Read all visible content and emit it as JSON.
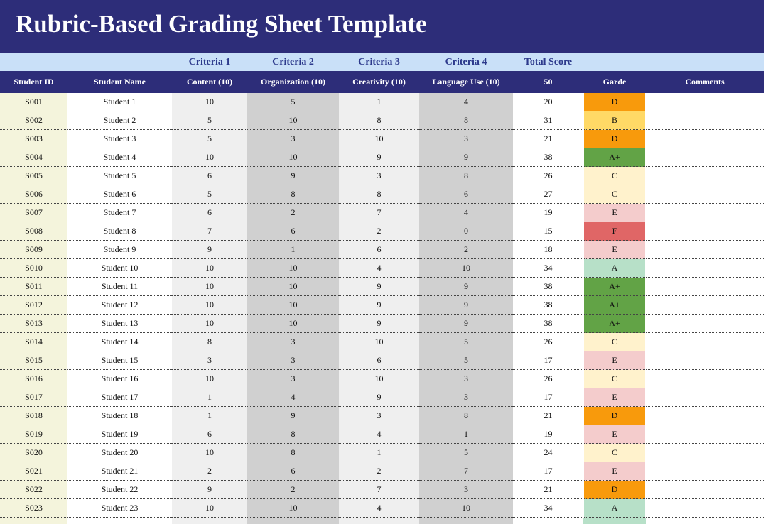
{
  "title": "Rubric-Based Grading Sheet Template",
  "criteria_row": [
    "Criteria 1",
    "Criteria 2",
    "Criteria 3",
    "Criteria 4",
    "Total Score"
  ],
  "columns": [
    "Student ID",
    "Student Name",
    "Content (10)",
    "Organization (10)",
    "Creativity (10)",
    "Language Use (10)",
    50,
    "Garde",
    "Comments"
  ],
  "rows": [
    [
      "S001",
      "Student 1",
      10,
      5,
      1,
      4,
      20,
      "D"
    ],
    [
      "S002",
      "Student 2",
      5,
      10,
      8,
      8,
      31,
      "B"
    ],
    [
      "S003",
      "Student 3",
      5,
      3,
      10,
      3,
      21,
      "D"
    ],
    [
      "S004",
      "Student 4",
      10,
      10,
      9,
      9,
      38,
      "A+"
    ],
    [
      "S005",
      "Student 5",
      6,
      9,
      3,
      8,
      26,
      "C"
    ],
    [
      "S006",
      "Student 6",
      5,
      8,
      8,
      6,
      27,
      "C"
    ],
    [
      "S007",
      "Student 7",
      6,
      2,
      7,
      4,
      19,
      "E"
    ],
    [
      "S008",
      "Student 8",
      7,
      6,
      2,
      0,
      15,
      "F"
    ],
    [
      "S009",
      "Student 9",
      9,
      1,
      6,
      2,
      18,
      "E"
    ],
    [
      "S010",
      "Student 10",
      10,
      10,
      4,
      10,
      34,
      "A"
    ],
    [
      "S011",
      "Student 11",
      10,
      10,
      9,
      9,
      38,
      "A+"
    ],
    [
      "S012",
      "Student 12",
      10,
      10,
      9,
      9,
      38,
      "A+"
    ],
    [
      "S013",
      "Student 13",
      10,
      10,
      9,
      9,
      38,
      "A+"
    ],
    [
      "S014",
      "Student 14",
      8,
      3,
      10,
      5,
      26,
      "C"
    ],
    [
      "S015",
      "Student 15",
      3,
      3,
      6,
      5,
      17,
      "E"
    ],
    [
      "S016",
      "Student 16",
      10,
      3,
      10,
      3,
      26,
      "C"
    ],
    [
      "S017",
      "Student 17",
      1,
      4,
      9,
      3,
      17,
      "E"
    ],
    [
      "S018",
      "Student 18",
      1,
      9,
      3,
      8,
      21,
      "D"
    ],
    [
      "S019",
      "Student 19",
      6,
      8,
      4,
      1,
      19,
      "E"
    ],
    [
      "S020",
      "Student 20",
      10,
      8,
      1,
      5,
      24,
      "C"
    ],
    [
      "S021",
      "Student 21",
      2,
      6,
      2,
      7,
      17,
      "E"
    ],
    [
      "S022",
      "Student 22",
      9,
      2,
      7,
      3,
      21,
      "D"
    ],
    [
      "S023",
      "Student 23",
      10,
      10,
      4,
      10,
      34,
      "A"
    ]
  ],
  "grade_colors": {
    "A+": "#62a346",
    "A": "#b7e0c8",
    "B": "#ffd966",
    "C": "#fff2cc",
    "D": "#f89a0c",
    "E": "#f4cccc",
    "F": "#e06666"
  }
}
